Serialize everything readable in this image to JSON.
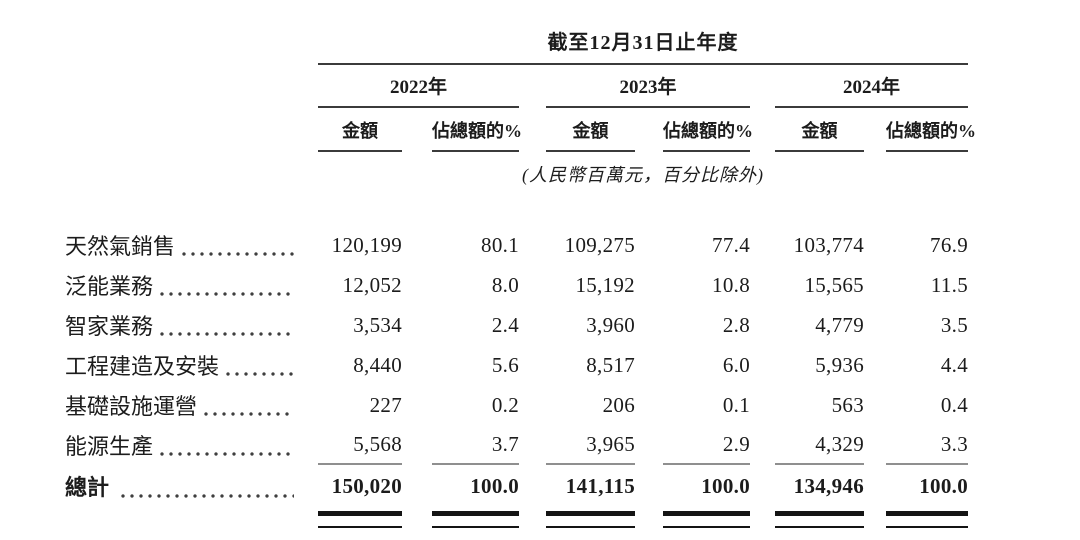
{
  "table": {
    "title": "截至12月31日止年度",
    "unit_note": "(人民幣百萬元，百分比除外)",
    "year_groups": [
      {
        "year": "2022年",
        "amount_label": "金額",
        "pct_label": "佔總額的%"
      },
      {
        "year": "2023年",
        "amount_label": "金額",
        "pct_label": "佔總額的%"
      },
      {
        "year": "2024年",
        "amount_label": "金額",
        "pct_label": "佔總額的%"
      }
    ],
    "rows": [
      {
        "label": "天然氣銷售",
        "values": [
          "120,199",
          "80.1",
          "109,275",
          "77.4",
          "103,774",
          "76.9"
        ]
      },
      {
        "label": "泛能業務",
        "values": [
          "12,052",
          "8.0",
          "15,192",
          "10.8",
          "15,565",
          "11.5"
        ]
      },
      {
        "label": "智家業務",
        "values": [
          "3,534",
          "2.4",
          "3,960",
          "2.8",
          "4,779",
          "3.5"
        ]
      },
      {
        "label": "工程建造及安裝",
        "values": [
          "8,440",
          "5.6",
          "8,517",
          "6.0",
          "5,936",
          "4.4"
        ]
      },
      {
        "label": "基礎設施運營",
        "values": [
          "227",
          "0.2",
          "206",
          "0.1",
          "563",
          "0.4"
        ]
      },
      {
        "label": "能源生產",
        "values": [
          "5,568",
          "3.7",
          "3,965",
          "2.9",
          "4,329",
          "3.3"
        ]
      }
    ],
    "total_row": {
      "label": "總計",
      "values": [
        "150,020",
        "100.0",
        "141,115",
        "100.0",
        "134,946",
        "100.0"
      ]
    }
  }
}
